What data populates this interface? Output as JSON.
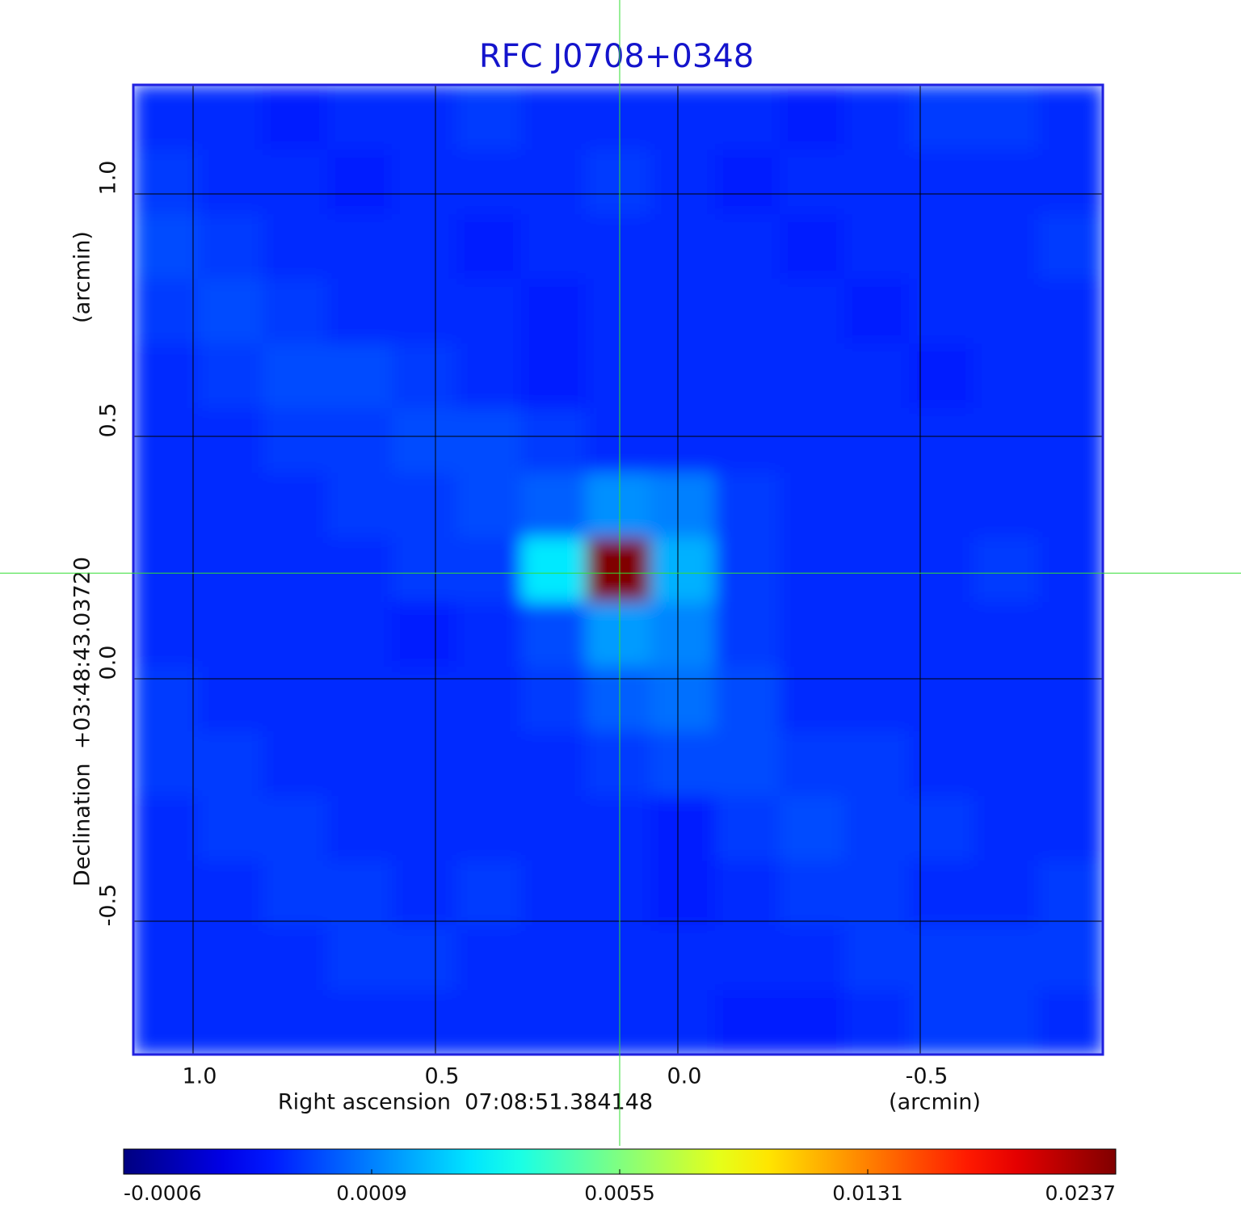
{
  "chart_data": {
    "type": "heatmap",
    "title": "RFC J0708+0348",
    "x_label": "Right ascension  07:08:51.384148",
    "x_unit": "(arcmin)",
    "y_label": "Declination  +03:48:43.03720",
    "y_unit": "(arcmin)",
    "xlim": [
      1.1233,
      -0.8767
    ],
    "ylim": [
      -0.775,
      1.225
    ],
    "xticks": [
      {
        "value": 1,
        "label": "1.0"
      },
      0.5,
      {
        "value": 0,
        "label": "0.0"
      },
      -0.5
    ],
    "yticks": [
      {
        "value": 1,
        "label": "1.0"
      },
      0.5,
      {
        "value": 0,
        "label": "0.0"
      },
      -0.5
    ],
    "grid": true,
    "colormap": "jet",
    "colorbar_ticks": [
      -0.0006,
      0.0009,
      0.0055,
      0.0131,
      0.0237
    ],
    "crosshair": {
      "x": 0.12,
      "y": 0.218,
      "color": "#33dd33"
    },
    "values": [
      [
        0.0004,
        0.0004,
        0.0003,
        0.0004,
        0.0004,
        0.0005,
        0.0004,
        0.0004,
        0.0004,
        0.0004,
        0.0003,
        0.0004,
        0.0005,
        0.0005,
        0.0004
      ],
      [
        0.0005,
        0.0004,
        0.0004,
        0.0003,
        0.0004,
        0.0004,
        0.0004,
        0.0005,
        0.0004,
        0.0003,
        0.0004,
        0.0004,
        0.0004,
        0.0004,
        0.0004
      ],
      [
        0.0006,
        0.0005,
        0.0004,
        0.0004,
        0.0004,
        0.0003,
        0.0004,
        0.0004,
        0.0004,
        0.0004,
        0.0003,
        0.0004,
        0.0004,
        0.0004,
        0.0005
      ],
      [
        0.0005,
        0.0006,
        0.0005,
        0.0004,
        0.0004,
        0.0004,
        0.0003,
        0.0004,
        0.0004,
        0.0004,
        0.0004,
        0.0003,
        0.0004,
        0.0004,
        0.0004
      ],
      [
        0.0004,
        0.0005,
        0.0006,
        0.0006,
        0.0005,
        0.0004,
        0.0003,
        0.0004,
        0.0004,
        0.0004,
        0.0004,
        0.0004,
        0.0003,
        0.0004,
        0.0004
      ],
      [
        0.0004,
        0.0004,
        0.0005,
        0.0005,
        0.0006,
        0.0006,
        0.0005,
        0.0004,
        0.0004,
        0.0004,
        0.0004,
        0.0004,
        0.0004,
        0.0004,
        0.0004
      ],
      [
        0.0004,
        0.0004,
        0.0004,
        0.0005,
        0.0005,
        0.0006,
        0.0007,
        0.0012,
        0.0009,
        0.0005,
        0.0004,
        0.0004,
        0.0004,
        0.0004,
        0.0004
      ],
      [
        0.0004,
        0.0004,
        0.0004,
        0.0004,
        0.0005,
        0.0005,
        0.0028,
        0.0237,
        0.0018,
        0.0005,
        0.0004,
        0.0004,
        0.0004,
        0.0005,
        0.0004
      ],
      [
        0.0004,
        0.0004,
        0.0004,
        0.0004,
        0.0003,
        0.0004,
        0.0006,
        0.0014,
        0.001,
        0.0005,
        0.0004,
        0.0004,
        0.0004,
        0.0004,
        0.0004
      ],
      [
        0.0005,
        0.0004,
        0.0004,
        0.0004,
        0.0004,
        0.0004,
        0.0005,
        0.0007,
        0.0008,
        0.0006,
        0.0004,
        0.0004,
        0.0004,
        0.0004,
        0.0004
      ],
      [
        0.0005,
        0.0005,
        0.0004,
        0.0004,
        0.0004,
        0.0004,
        0.0004,
        0.0005,
        0.0006,
        0.0006,
        0.0005,
        0.0005,
        0.0004,
        0.0004,
        0.0004
      ],
      [
        0.0004,
        0.0005,
        0.0005,
        0.0004,
        0.0004,
        0.0004,
        0.0004,
        0.0004,
        0.0003,
        0.0005,
        0.0006,
        0.0005,
        0.0005,
        0.0004,
        0.0004
      ],
      [
        0.0004,
        0.0004,
        0.0005,
        0.0005,
        0.0004,
        0.0005,
        0.0004,
        0.0004,
        0.0003,
        0.0004,
        0.0005,
        0.0005,
        0.0004,
        0.0004,
        0.0005
      ],
      [
        0.0004,
        0.0004,
        0.0004,
        0.0005,
        0.0005,
        0.0004,
        0.0004,
        0.0004,
        0.0004,
        0.0004,
        0.0004,
        0.0005,
        0.0005,
        0.0005,
        0.0005
      ],
      [
        0.0004,
        0.0004,
        0.0004,
        0.0004,
        0.0004,
        0.0004,
        0.0004,
        0.0004,
        0.0004,
        0.0003,
        0.0003,
        0.0004,
        0.0005,
        0.0005,
        0.0004
      ]
    ]
  }
}
